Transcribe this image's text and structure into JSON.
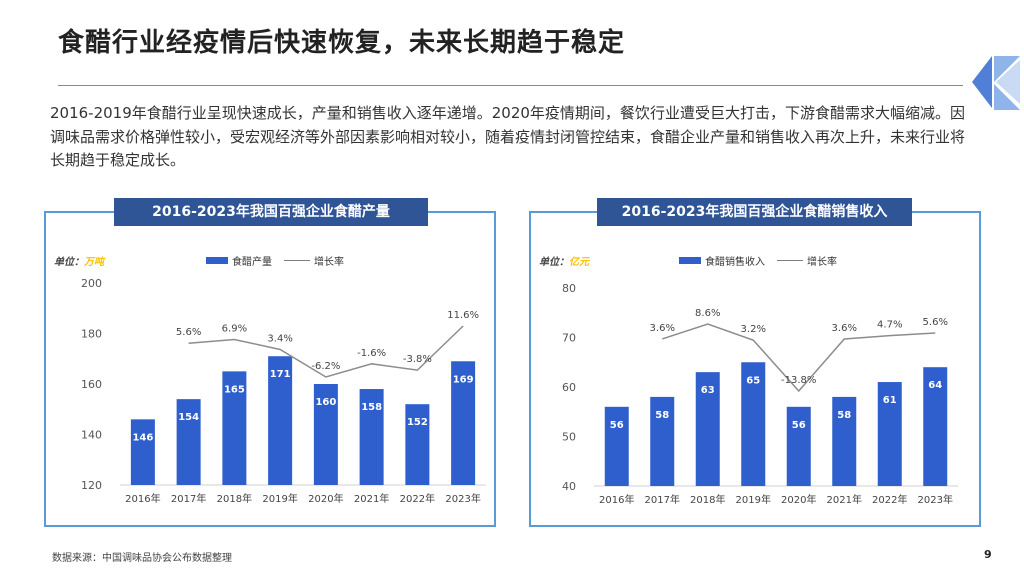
{
  "page": {
    "title": "食醋行业经疫情后快速恢复，未来长期趋于稳定",
    "intro": "2016-2019年食醋行业呈现快速成长，产量和销售收入逐年递增。2020年疫情期间，餐饮行业遭受巨大打击，下游食醋需求大幅缩减。因调味品需求价格弹性较小，受宏观经济等外部因素影响相对较小，随着疫情封闭管控结束，食醋企业产量和销售收入再次上升，未来行业将长期趋于稳定成长。",
    "source": "数据来源：中国调味品协会公布数据整理",
    "page_number": "9",
    "colors": {
      "bar": "#2e5fcc",
      "line": "#8c8c8c",
      "frame": "#5b9bd5",
      "title_bg": "#2f5597",
      "unit_value": "#ffc000"
    }
  },
  "chart_data": [
    {
      "type": "bar",
      "title": "2016-2023年我国百强企业食醋产量",
      "unit_label": "单位：",
      "unit_value": "万吨",
      "categories": [
        "2016年",
        "2017年",
        "2018年",
        "2019年",
        "2020年",
        "2021年",
        "2022年",
        "2023年"
      ],
      "ylim": [
        120,
        200
      ],
      "yticks": [
        120,
        140,
        160,
        180,
        200
      ],
      "series": [
        {
          "name": "食醋产量",
          "kind": "bar",
          "values": [
            146,
            154,
            165,
            171,
            160,
            158,
            152,
            169
          ]
        },
        {
          "name": "增长率",
          "kind": "line",
          "values": [
            null,
            5.6,
            6.9,
            3.4,
            -6.2,
            -1.6,
            -3.8,
            11.6
          ],
          "labels": [
            "",
            "5.6%",
            "6.9%",
            "3.4%",
            "-6.2%",
            "-1.6%",
            "-3.8%",
            "11.6%"
          ]
        }
      ]
    },
    {
      "type": "bar",
      "title": "2016-2023年我国百强企业食醋销售收入",
      "unit_label": "单位：",
      "unit_value": "亿元",
      "categories": [
        "2016年",
        "2017年",
        "2018年",
        "2019年",
        "2020年",
        "2021年",
        "2022年",
        "2023年"
      ],
      "ylim": [
        40,
        80
      ],
      "yticks": [
        40,
        50,
        60,
        70,
        80
      ],
      "series": [
        {
          "name": "食醋销售收入",
          "kind": "bar",
          "values": [
            56,
            58,
            63,
            65,
            56,
            58,
            61,
            64
          ]
        },
        {
          "name": "增长率",
          "kind": "line",
          "values": [
            null,
            3.6,
            8.6,
            3.2,
            -13.8,
            3.6,
            4.7,
            5.6
          ],
          "labels": [
            "",
            "3.6%",
            "8.6%",
            "3.2%",
            "-13.8%",
            "3.6%",
            "4.7%",
            "5.6%"
          ]
        }
      ]
    }
  ]
}
